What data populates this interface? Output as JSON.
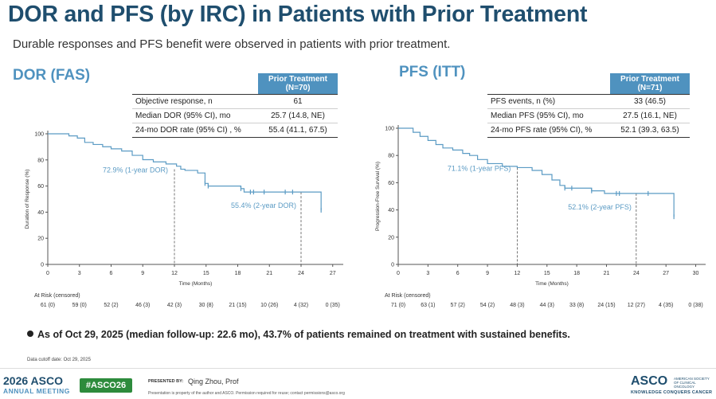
{
  "title": "DOR and PFS (by IRC) in Patients with Prior Treatment",
  "subtitle": "Durable responses and PFS benefit were observed in patients with prior treatment.",
  "colors": {
    "accent": "#4f92bf",
    "title": "#1f4e6e",
    "curve": "#5b9bc4"
  },
  "chart_data": [
    {
      "type": "line",
      "section_label": "DOR (FAS)",
      "table": {
        "header": "Prior Treatment",
        "header_n": "(N=70)",
        "rows": [
          {
            "label": "Objective response, n",
            "value": "61"
          },
          {
            "label": "Median DOR (95% CI), mo",
            "value": "25.7 (14.8, NE)"
          },
          {
            "label": "24-mo DOR rate (95% CI) , %",
            "value": "55.4 (41.1, 67.5)"
          }
        ]
      },
      "xlabel": "Time (Months)",
      "ylabel": "Duration of Response (%)",
      "xlim": [
        0,
        28
      ],
      "ylim": [
        0,
        100
      ],
      "xticks": [
        0,
        3,
        6,
        9,
        12,
        15,
        18,
        21,
        24,
        27
      ],
      "yticks": [
        0,
        20,
        40,
        60,
        80,
        100
      ],
      "curve": {
        "x": [
          0,
          2,
          2.8,
          3.5,
          4.3,
          5.2,
          6,
          7,
          8,
          9,
          10,
          11.2,
          12.2,
          12.6,
          13,
          14.2,
          14.9,
          15.2,
          17.5,
          18.3,
          18.6,
          23.5,
          24.2,
          25.7,
          25.9
        ],
        "y": [
          100,
          98.4,
          96.7,
          93.4,
          91.8,
          90.1,
          88.5,
          86.8,
          83.5,
          80.2,
          78.5,
          76.9,
          75.2,
          72.9,
          72,
          70,
          62,
          60,
          60,
          58,
          55.4,
          55.4,
          55.4,
          55.4,
          41.5
        ]
      },
      "censor_marks": [
        {
          "x": 14.9,
          "y": 62
        },
        {
          "x": 15.2,
          "y": 60
        },
        {
          "x": 18.3,
          "y": 58
        },
        {
          "x": 19.2,
          "y": 55.4
        },
        {
          "x": 19.5,
          "y": 55.4
        },
        {
          "x": 20.5,
          "y": 55.4
        },
        {
          "x": 22.5,
          "y": 55.4
        },
        {
          "x": 23.2,
          "y": 55.4
        },
        {
          "x": 25.9,
          "y": 41.5
        }
      ],
      "annotations": [
        {
          "text": "72.9% (1-year DOR)",
          "x": 12,
          "y": 72.9
        },
        {
          "text": "55.4% (2-year DOR)",
          "x": 24,
          "y": 55.4
        }
      ],
      "at_risk_label": "At Risk (censored)",
      "at_risk": [
        "61 (0)",
        "59 (0)",
        "52 (2)",
        "46 (3)",
        "42 (3)",
        "30 (8)",
        "21 (15)",
        "10 (26)",
        "4 (32)",
        "0 (35)"
      ]
    },
    {
      "type": "line",
      "section_label": "PFS (ITT)",
      "table": {
        "header": "Prior Treatment",
        "header_n": "(N=71)",
        "rows": [
          {
            "label": "PFS events, n (%)",
            "value": "33 (46.5)"
          },
          {
            "label": "Median PFS (95% CI), mo",
            "value": "27.5 (16.1, NE)"
          },
          {
            "label": "24-mo PFS rate (95% CI), %",
            "value": "52.1  (39.3, 63.5)"
          }
        ]
      },
      "xlabel": "Time (Months)",
      "ylabel": "Progression-Free Survival (%)",
      "xlim": [
        0,
        31
      ],
      "ylim": [
        0,
        100
      ],
      "xticks": [
        0,
        3,
        6,
        9,
        12,
        15,
        18,
        21,
        24,
        27,
        30
      ],
      "yticks": [
        0,
        20,
        40,
        60,
        80,
        100
      ],
      "curve": {
        "x": [
          0,
          1.5,
          2.2,
          3,
          3.8,
          4.5,
          5.5,
          6.5,
          7.2,
          8,
          9,
          10.5,
          12,
          13.5,
          14.5,
          15.5,
          16.3,
          16.8,
          18.5,
          19.5,
          20.8,
          22,
          27,
          27.5,
          27.8
        ],
        "y": [
          100,
          97,
          94,
          91,
          88,
          85.5,
          84,
          81.5,
          80,
          77,
          74,
          72,
          71.1,
          69,
          66,
          62,
          58,
          56,
          56,
          54,
          52.1,
          52.1,
          52.1,
          52.1,
          35
        ]
      },
      "censor_marks": [
        {
          "x": 16.8,
          "y": 56
        },
        {
          "x": 17.5,
          "y": 56
        },
        {
          "x": 19.5,
          "y": 54
        },
        {
          "x": 22,
          "y": 52.1
        },
        {
          "x": 22.3,
          "y": 52.1
        },
        {
          "x": 25.2,
          "y": 52.1
        },
        {
          "x": 27.8,
          "y": 35
        }
      ],
      "annotations": [
        {
          "text": "71.1% (1-year PFS)",
          "x": 12,
          "y": 71.1
        },
        {
          "text": "52.1% (2-year PFS)",
          "x": 24,
          "y": 52.1
        }
      ],
      "at_risk_label": "At Risk (censored)",
      "at_risk": [
        "71 (0)",
        "63 (1)",
        "57 (2)",
        "54 (2)",
        "48 (3)",
        "44 (3)",
        "33 (8)",
        "24 (15)",
        "12 (27)",
        "4 (35)",
        "0 (38)"
      ]
    }
  ],
  "note": "As of Oct 29, 2025 (median follow-up: 22.6 mo), 43.7% of patients remained on treatment with sustained benefits.",
  "cutoff": "Data cutoff date: Oct 29, 2025",
  "footer": {
    "year": "2026",
    "org": "ASCO",
    "meeting": "ANNUAL MEETING",
    "hashtag": "#ASCO26",
    "presented_by": "PRESENTED BY:",
    "presenter": "Qing Zhou, Prof",
    "disclaimer": "Presentation is property of the author and ASCO. Permission required for reuse; contact permissions@asco.org",
    "logo": "ASCO",
    "logo_small": "AMERICAN SOCIETY OF CLINICAL ONCOLOGY",
    "tagline": "KNOWLEDGE CONQUERS CANCER"
  }
}
